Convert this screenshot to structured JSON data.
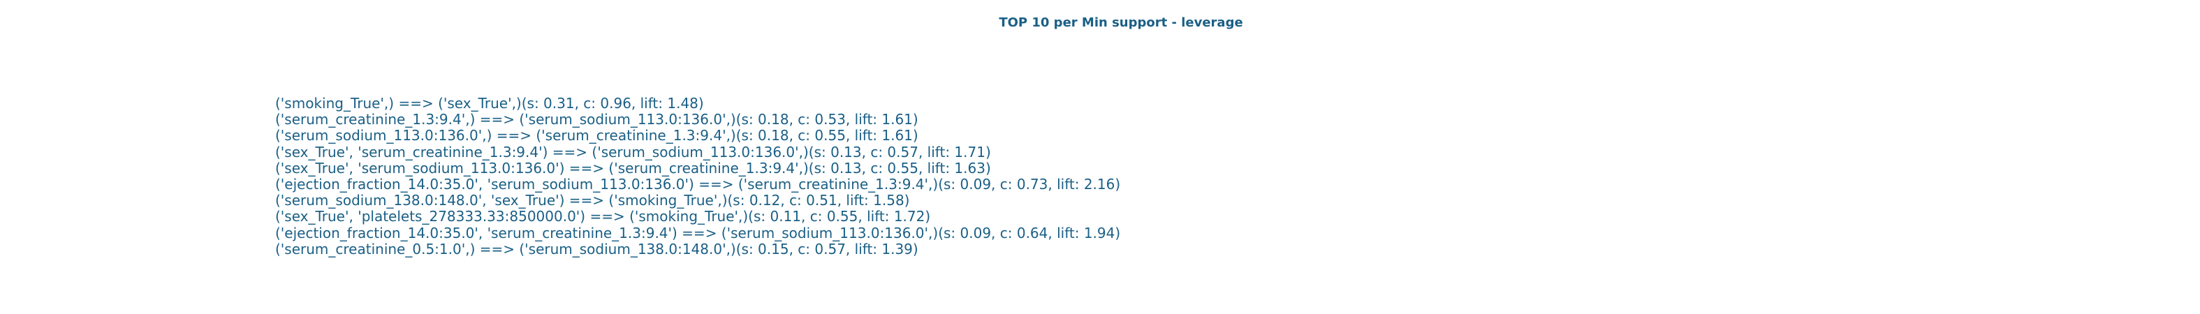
{
  "title": "TOP 10 per Min support - leverage",
  "rules": [
    "('smoking_True',) ==> ('sex_True',)(s: 0.31, c: 0.96, lift: 1.48)",
    "('serum_creatinine_1.3:9.4',) ==> ('serum_sodium_113.0:136.0',)(s: 0.18, c: 0.53, lift: 1.61)",
    "('serum_sodium_113.0:136.0',) ==> ('serum_creatinine_1.3:9.4',)(s: 0.18, c: 0.55, lift: 1.61)",
    "('sex_True', 'serum_creatinine_1.3:9.4') ==> ('serum_sodium_113.0:136.0',)(s: 0.13, c: 0.57, lift: 1.71)",
    "('sex_True', 'serum_sodium_113.0:136.0') ==> ('serum_creatinine_1.3:9.4',)(s: 0.13, c: 0.55, lift: 1.63)",
    "('ejection_fraction_14.0:35.0', 'serum_sodium_113.0:136.0') ==> ('serum_creatinine_1.3:9.4',)(s: 0.09, c: 0.73, lift: 2.16)",
    "('serum_sodium_138.0:148.0', 'sex_True') ==> ('smoking_True',)(s: 0.12, c: 0.51, lift: 1.58)",
    "('sex_True', 'platelets_278333.33:850000.0') ==> ('smoking_True',)(s: 0.11, c: 0.55, lift: 1.72)",
    "('ejection_fraction_14.0:35.0', 'serum_creatinine_1.3:9.4') ==> ('serum_sodium_113.0:136.0',)(s: 0.09, c: 0.64, lift: 1.94)",
    "('serum_creatinine_0.5:1.0',) ==> ('serum_sodium_138.0:148.0',)(s: 0.15, c: 0.57, lift: 1.39)"
  ],
  "colors": {
    "text": "#1a5f86",
    "background": "#ffffff"
  }
}
